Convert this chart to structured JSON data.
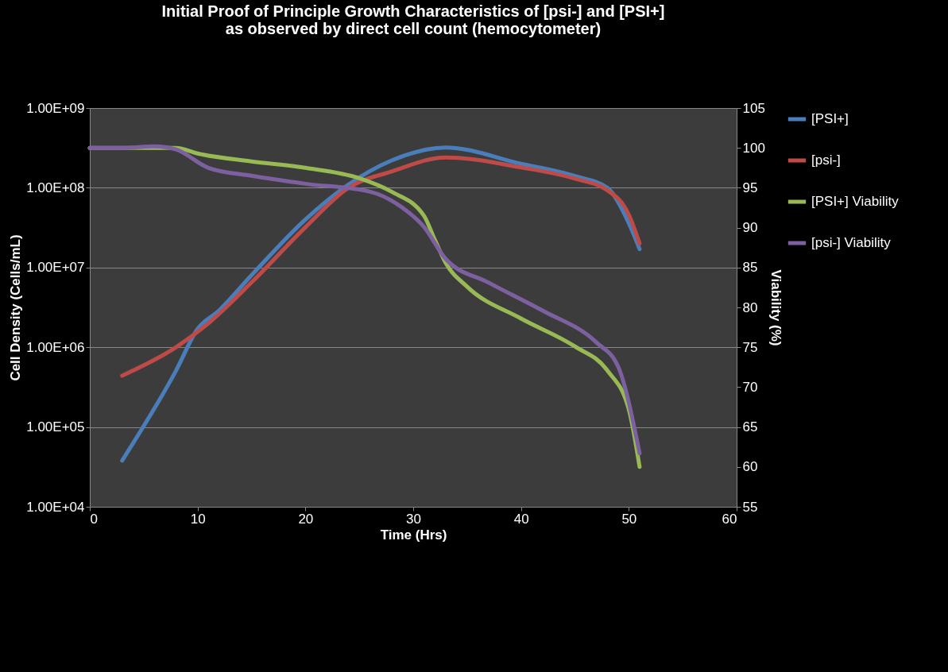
{
  "chart_data": {
    "type": "line",
    "title": "Initial Proof of Principle  Growth Characteristics of [psi-] and [PSI+]\nas observed by direct cell count (hemocytometer)",
    "xlabel": "Time (Hrs)",
    "ylabel": "Cell Density (Cells/mL)",
    "y2label": "Viability (%)",
    "log": "y",
    "grid": "y",
    "legend": "top right",
    "marker": "none",
    "line_style": "solid",
    "xlim": [
      0,
      60
    ],
    "xticks": [
      0,
      10,
      20,
      30,
      40,
      50,
      60
    ],
    "ylim": [
      10000,
      1000000000
    ],
    "yticks": [
      {
        "value": 10000,
        "label": "1.00E+04"
      },
      {
        "value": 100000,
        "label": "1.00E+05"
      },
      {
        "value": 1000000,
        "label": "1.00E+06"
      },
      {
        "value": 10000000,
        "label": "1.00E+07"
      },
      {
        "value": 100000000,
        "label": "1.00E+08"
      },
      {
        "value": 1000000000,
        "label": "1.00E+09"
      }
    ],
    "y2lim": [
      55,
      105
    ],
    "y2ticks": [
      55,
      60,
      65,
      70,
      75,
      80,
      85,
      90,
      95,
      100,
      105
    ],
    "series": [
      {
        "name": "[PSI+]",
        "color": "#4a7ebb",
        "x": [
          3,
          8,
          10,
          12,
          15,
          20,
          24,
          28,
          33,
          40,
          45,
          48,
          50,
          51
        ],
        "values": [
          38000,
          510000,
          1700000,
          2900000,
          8000000,
          40000000,
          110000000,
          220000000,
          320000000,
          200000000,
          140000000,
          100000000,
          36000000,
          17000000
        ]
      },
      {
        "name": "[psi-]",
        "color": "#be4b48",
        "x": [
          3,
          8,
          11,
          15,
          20,
          24,
          28,
          33,
          40,
          45,
          48,
          50,
          51
        ],
        "values": [
          440000,
          1000000,
          2000000,
          6500000,
          32000000,
          100000000,
          160000000,
          240000000,
          180000000,
          130000000,
          93000000,
          46000000,
          20000000
        ]
      },
      {
        "name": "[PSI+] Viability",
        "color": "#98b954",
        "axis": "y2",
        "x": [
          0,
          8,
          10,
          15,
          20,
          25,
          28,
          31,
          32,
          33,
          35,
          40,
          45,
          48,
          50,
          51
        ],
        "values": [
          100,
          100,
          99.3,
          98.3,
          97.5,
          96.2,
          94.5,
          91.5,
          88.5,
          85.6,
          82.6,
          78.6,
          75.1,
          72.1,
          67.2,
          60
        ]
      },
      {
        "name": "[psi-] Viability",
        "color": "#7d60a0",
        "axis": "y2",
        "x": [
          0,
          3,
          6,
          8,
          11,
          15,
          20,
          26,
          29,
          31,
          33,
          37,
          42,
          47,
          49,
          51
        ],
        "values": [
          100,
          100,
          100.2,
          99.8,
          97.5,
          96.5,
          95.5,
          94.5,
          92.5,
          90.1,
          86.1,
          83.1,
          79.6,
          75.6,
          72.6,
          61.7
        ]
      }
    ]
  }
}
